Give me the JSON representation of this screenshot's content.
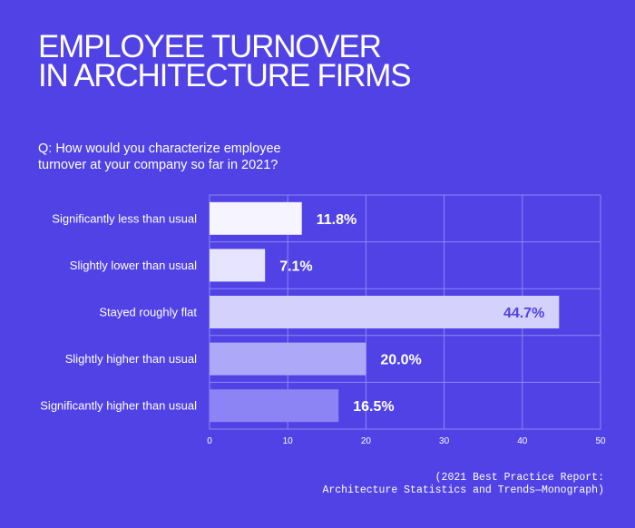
{
  "title_lines": [
    "EMPLOYEE TURNOVER",
    "IN ARCHITECTURE FIRMS"
  ],
  "question": "Q: How would you characterize employee turnover at your company so far in 2021?",
  "source_lines": [
    "(2021 Best Practice Report:",
    "Architecture Statistics and Trends—Monograph)"
  ],
  "colors": {
    "background": "#5142e6",
    "grid": "#8f86f2",
    "value_label_outside": "#ffffff",
    "value_label_inside": "#5142e6"
  },
  "chart_data": {
    "type": "bar",
    "orientation": "horizontal",
    "title": "",
    "xlabel": "",
    "ylabel": "",
    "xlim": [
      0,
      50
    ],
    "xticks": [
      0,
      10,
      20,
      30,
      40,
      50
    ],
    "grid": true,
    "categories": [
      "Significantly less than usual",
      "Slightly lower than usual",
      "Stayed roughly flat",
      "Slightly higher than usual",
      "Significantly higher than usual"
    ],
    "values": [
      11.8,
      7.1,
      44.7,
      20.0,
      16.5
    ],
    "value_labels": [
      "11.8%",
      "7.1%",
      "44.7%",
      "20.0%",
      "16.5%"
    ],
    "bar_colors": [
      "#f5f4ff",
      "#e6e4fe",
      "#d4d1fc",
      "#aea8f8",
      "#8c83f4"
    ]
  }
}
